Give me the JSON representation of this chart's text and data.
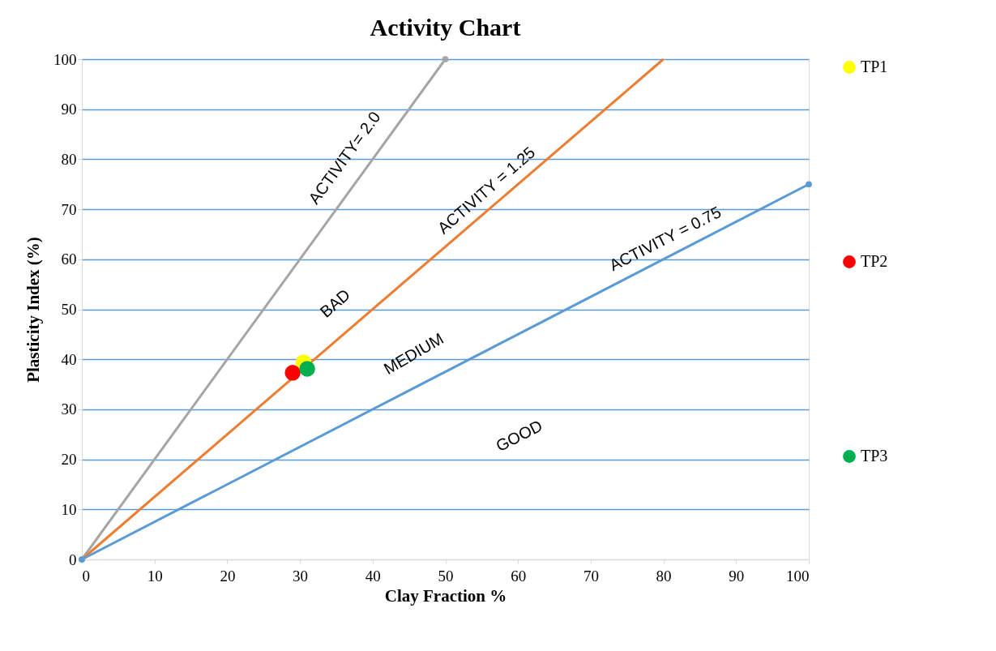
{
  "chart_data": {
    "type": "line",
    "title": "Activity Chart",
    "xlabel": "Clay Fraction %",
    "ylabel": "Plasticity Index (%)",
    "xlim": [
      0,
      100
    ],
    "xticks": [
      0,
      10,
      20,
      30,
      40,
      50,
      60,
      70,
      80,
      90,
      100
    ],
    "ylim": [
      0,
      100
    ],
    "yticks": [
      0,
      10,
      20,
      30,
      40,
      50,
      60,
      70,
      80,
      90,
      100
    ],
    "grid": "y",
    "legend": "right",
    "line_style": "solid",
    "series": [
      {
        "color": "#a5a5a5",
        "x": [
          0,
          50
        ],
        "values": [
          0,
          100
        ],
        "marker": "circle"
      },
      {
        "color": "#ed7d31",
        "x": [
          0,
          80
        ],
        "values": [
          0,
          100
        ],
        "marker": "none"
      },
      {
        "color": "#5b9bd5",
        "x": [
          0,
          100
        ],
        "values": [
          0,
          75
        ],
        "marker": "circle"
      },
      {
        "name": "TP1",
        "type": "scatter",
        "color": "#ffff00",
        "x": [
          30.5
        ],
        "values": [
          39.4
        ],
        "marker": "circle"
      },
      {
        "name": "TP2",
        "type": "scatter",
        "color": "#ff0000",
        "x": [
          29.0
        ],
        "values": [
          37.3
        ],
        "marker": "circle"
      },
      {
        "name": "TP3",
        "type": "scatter",
        "color": "#00b050",
        "x": [
          31.0
        ],
        "values": [
          38.1
        ],
        "marker": "circle"
      }
    ],
    "annotations": [
      "ACTIVITY= 2.0",
      "ACTIVITY = 1.25",
      "ACTIVITY = 0.75",
      "BAD",
      "MEDIUM",
      "GOOD"
    ]
  }
}
